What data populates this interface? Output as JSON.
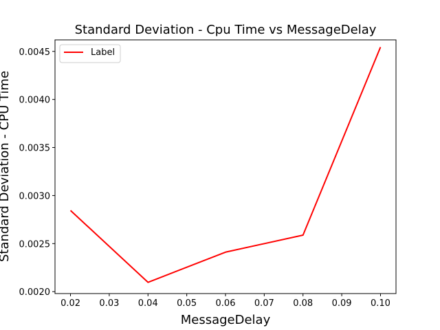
{
  "chart_data": {
    "type": "line",
    "title": "Standard Deviation - Cpu Time vs MessageDelay",
    "xlabel": "MessageDelay",
    "ylabel": "Standard Deviation - CPU Time",
    "x": [
      0.02,
      0.04,
      0.06,
      0.08,
      0.1
    ],
    "xlim": [
      0.016,
      0.104
    ],
    "ylim": [
      0.00198,
      0.00462
    ],
    "xticks": [
      0.02,
      0.03,
      0.04,
      0.05,
      0.06,
      0.07,
      0.08,
      0.09,
      0.1
    ],
    "xtick_labels": [
      "0.02",
      "0.03",
      "0.04",
      "0.05",
      "0.06",
      "0.07",
      "0.08",
      "0.09",
      "0.10"
    ],
    "yticks": [
      0.002,
      0.0025,
      0.003,
      0.0035,
      0.004,
      0.0045
    ],
    "ytick_labels": [
      "0.0020",
      "0.0025",
      "0.0030",
      "0.0035",
      "0.0040",
      "0.0045"
    ],
    "grid": false,
    "legend_position": "top-left",
    "series": [
      {
        "name": "Label",
        "color": "#ff0000",
        "values": [
          0.002845,
          0.002097,
          0.002411,
          0.002588,
          0.004545
        ]
      }
    ]
  }
}
